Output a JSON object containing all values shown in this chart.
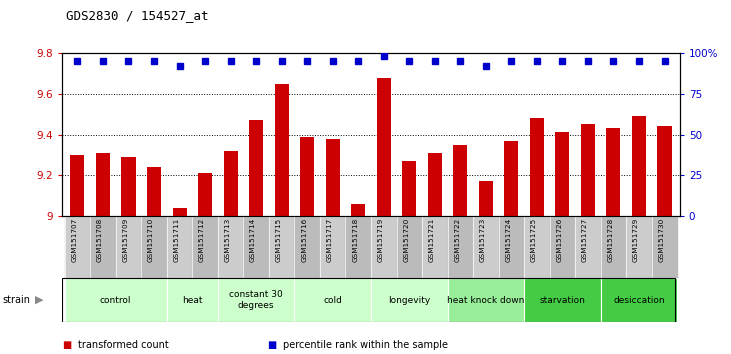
{
  "title": "GDS2830 / 154527_at",
  "samples": [
    "GSM151707",
    "GSM151708",
    "GSM151709",
    "GSM151710",
    "GSM151711",
    "GSM151712",
    "GSM151713",
    "GSM151714",
    "GSM151715",
    "GSM151716",
    "GSM151717",
    "GSM151718",
    "GSM151719",
    "GSM151720",
    "GSM151721",
    "GSM151722",
    "GSM151723",
    "GSM151724",
    "GSM151725",
    "GSM151726",
    "GSM151727",
    "GSM151728",
    "GSM151729",
    "GSM151730"
  ],
  "bar_values": [
    9.3,
    9.31,
    9.29,
    9.24,
    9.04,
    9.21,
    9.32,
    9.47,
    9.65,
    9.39,
    9.38,
    9.06,
    9.68,
    9.27,
    9.31,
    9.35,
    9.17,
    9.37,
    9.48,
    9.41,
    9.45,
    9.43,
    9.49,
    9.44
  ],
  "percentile_values": [
    95,
    95,
    95,
    95,
    92,
    95,
    95,
    95,
    95,
    95,
    95,
    95,
    98,
    95,
    95,
    95,
    92,
    95,
    95,
    95,
    95,
    95,
    95,
    95
  ],
  "bar_color": "#cc0000",
  "percentile_color": "#0000cc",
  "ylim_left": [
    9.0,
    9.8
  ],
  "ylim_right": [
    0,
    100
  ],
  "yticks_left": [
    9.0,
    9.2,
    9.4,
    9.6,
    9.8
  ],
  "ytick_labels_left": [
    "9",
    "9.2",
    "9.4",
    "9.6",
    "9.8"
  ],
  "yticks_right": [
    0,
    25,
    50,
    75,
    100
  ],
  "ytick_labels_right": [
    "0",
    "25",
    "50",
    "75",
    "100%"
  ],
  "groups": [
    {
      "label": "control",
      "start": 0,
      "end": 3,
      "color": "#ccffcc"
    },
    {
      "label": "heat",
      "start": 4,
      "end": 5,
      "color": "#ccffcc"
    },
    {
      "label": "constant 30\ndegrees",
      "start": 6,
      "end": 8,
      "color": "#ccffcc"
    },
    {
      "label": "cold",
      "start": 9,
      "end": 11,
      "color": "#ccffcc"
    },
    {
      "label": "longevity",
      "start": 12,
      "end": 14,
      "color": "#ccffcc"
    },
    {
      "label": "heat knock down",
      "start": 15,
      "end": 17,
      "color": "#99ee99"
    },
    {
      "label": "starvation",
      "start": 18,
      "end": 20,
      "color": "#44cc44"
    },
    {
      "label": "desiccation",
      "start": 21,
      "end": 23,
      "color": "#44cc44"
    }
  ],
  "legend_items": [
    {
      "label": "transformed count",
      "color": "#cc0000"
    },
    {
      "label": "percentile rank within the sample",
      "color": "#0000cc"
    }
  ],
  "bar_width": 0.55,
  "baseline": 9.0,
  "background_color": "#ffffff",
  "plot_bg_color": "#ffffff",
  "left_tick_color": "#cc0000",
  "right_tick_color": "#0000cc",
  "sample_box_colors": [
    "#cccccc",
    "#bbbbbb"
  ],
  "grid_lines": [
    9.2,
    9.4,
    9.6
  ]
}
